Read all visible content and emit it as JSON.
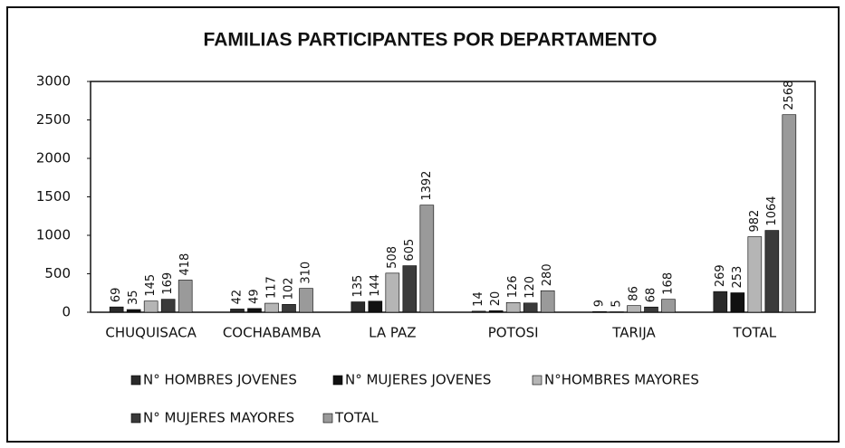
{
  "chart_data": {
    "type": "bar",
    "title": "FAMILIAS PARTICIPANTES POR DEPARTAMENTO",
    "categories": [
      "CHUQUISACA",
      "COCHABAMBA",
      "LA PAZ",
      "POTOSI",
      "TARIJA",
      "TOTAL"
    ],
    "series": [
      {
        "name": "N° HOMBRES JOVENES",
        "color": "#2a2a2a",
        "values": [
          69,
          42,
          135,
          14,
          9,
          269
        ]
      },
      {
        "name": "N° MUJERES JOVENES",
        "color": "#111111",
        "values": [
          35,
          49,
          144,
          20,
          5,
          253
        ]
      },
      {
        "name": "N°HOMBRES MAYORES",
        "color": "#b5b5b5",
        "values": [
          145,
          117,
          508,
          126,
          86,
          982
        ]
      },
      {
        "name": "N° MUJERES MAYORES",
        "color": "#3a3a3a",
        "values": [
          169,
          102,
          605,
          120,
          68,
          1064
        ]
      },
      {
        "name": "TOTAL",
        "color": "#9a9a9a",
        "values": [
          418,
          310,
          1392,
          280,
          168,
          2568
        ]
      }
    ],
    "ylim": [
      0,
      3000
    ],
    "yticks": [
      0,
      500,
      1000,
      1500,
      2000,
      2500,
      3000
    ],
    "grid": false
  }
}
